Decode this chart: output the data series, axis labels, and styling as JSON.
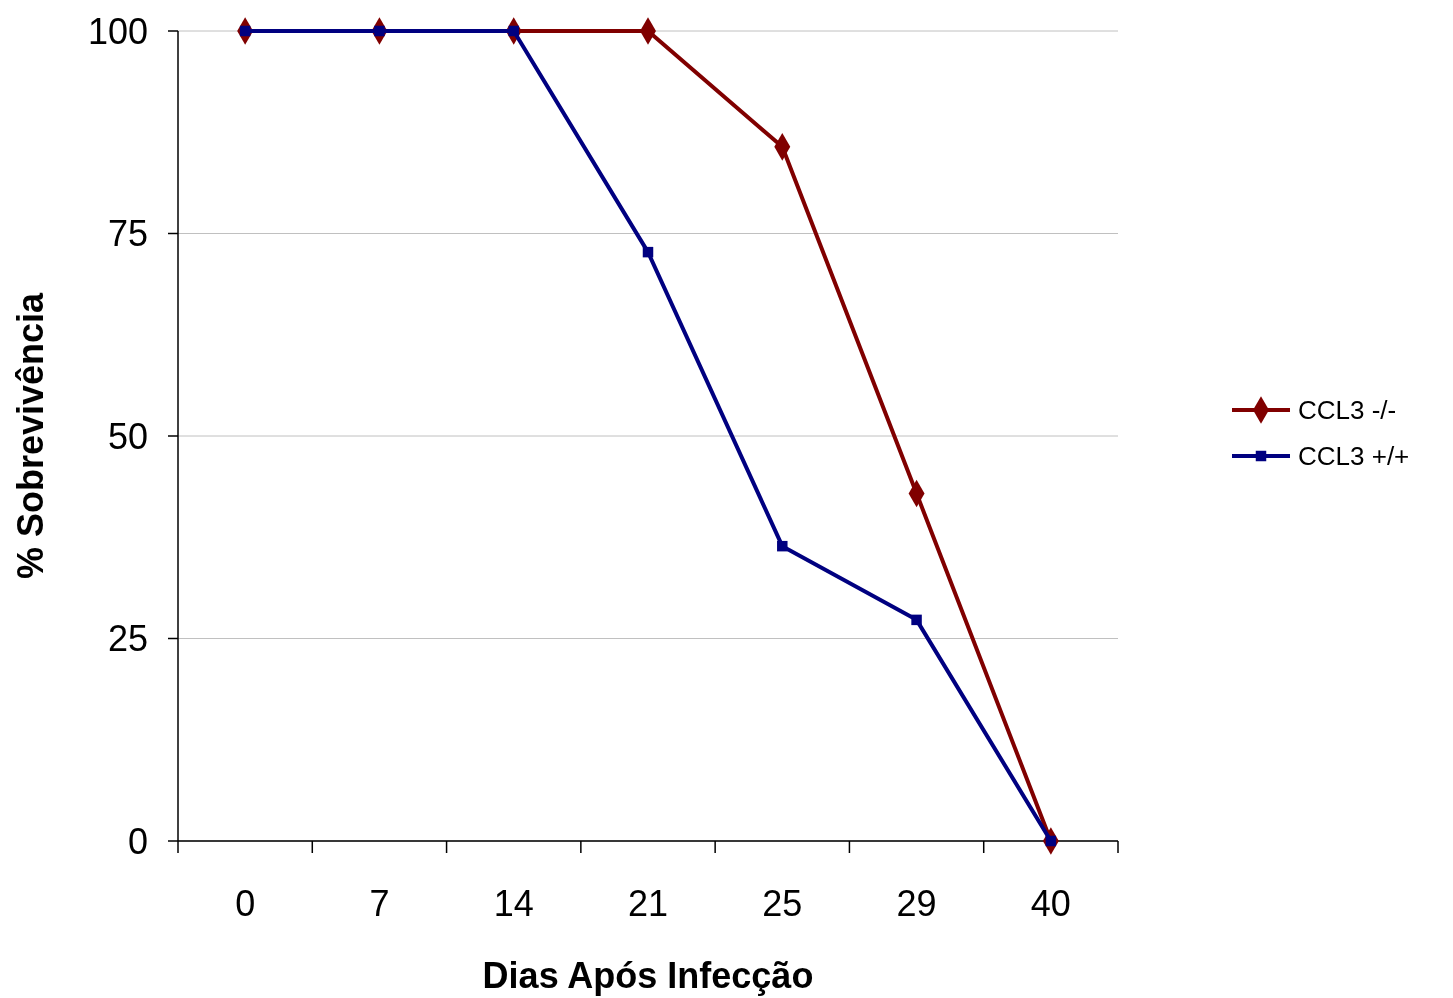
{
  "chart_data": {
    "type": "line",
    "xlabel": "Dias Após Infecção",
    "ylabel": "% Sobrevivência",
    "categories": [
      "0",
      "7",
      "14",
      "21",
      "25",
      "29",
      "40"
    ],
    "series": [
      {
        "name": "CCL3 -/-",
        "color": "#800000",
        "marker": "diamond",
        "values": [
          100,
          100,
          100,
          100,
          85.7,
          42.9,
          0
        ]
      },
      {
        "name": "CCL3 +/+",
        "color": "#000080",
        "marker": "square",
        "values": [
          100,
          100,
          100,
          72.7,
          36.4,
          27.3,
          0
        ]
      }
    ],
    "ylim": [
      0,
      100
    ],
    "yticks": [
      0,
      25,
      50,
      75,
      100
    ],
    "grid": "y",
    "legend": "right",
    "line_style": "solid"
  }
}
